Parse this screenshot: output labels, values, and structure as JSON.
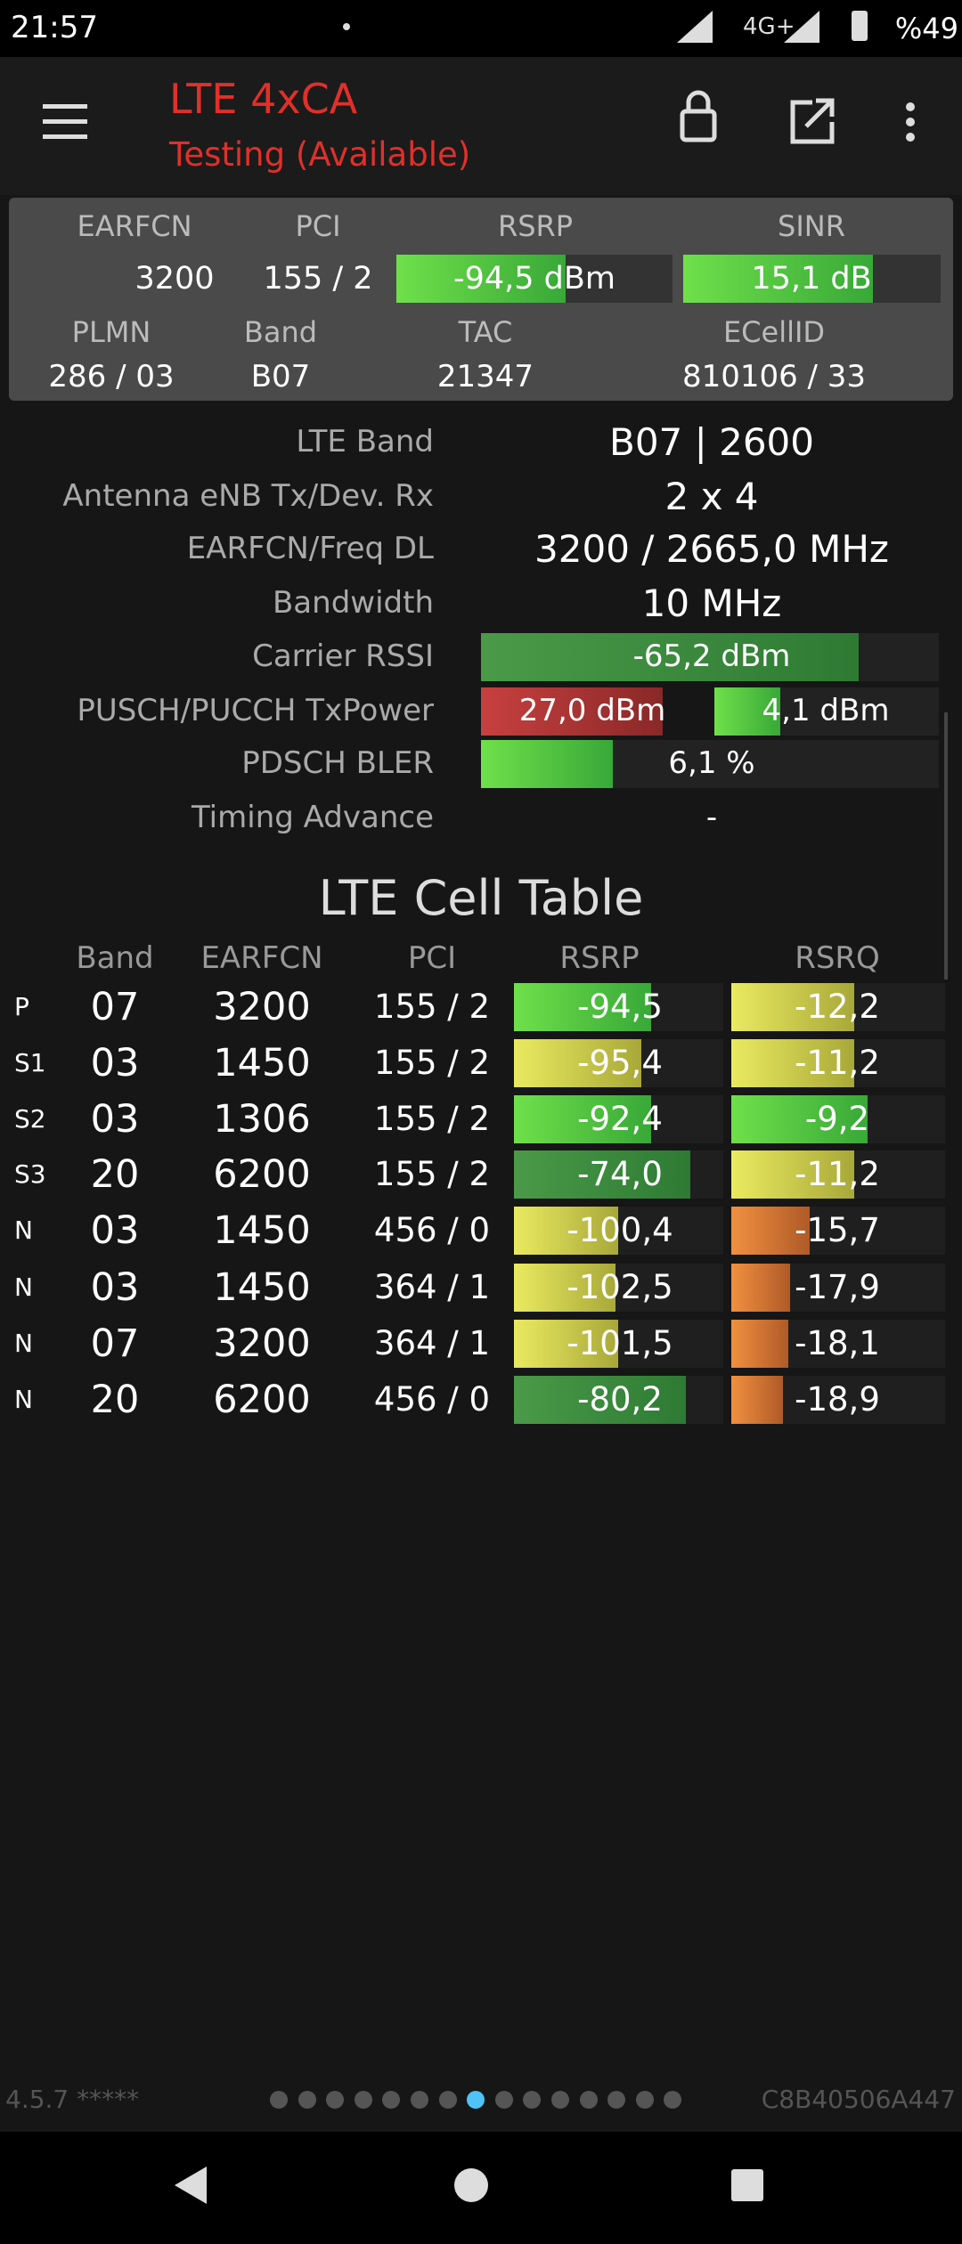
{
  "status_bar": {
    "time": "21:57",
    "network": "4G+",
    "battery": "%49"
  },
  "header": {
    "title": "LTE 4xCA",
    "subtitle": "Testing (Available)"
  },
  "summary": {
    "labels": [
      "EARFCN",
      "PCI",
      "RSRP",
      "SINR"
    ],
    "values": [
      "3200",
      "155 / 2",
      "-94,5 dBm",
      "15,1 dB"
    ],
    "labels2": [
      "PLMN",
      "Band",
      "TAC",
      "ECellID"
    ],
    "values2": [
      "286 / 03",
      "B07",
      "21347",
      "810106 / 33"
    ]
  },
  "details": {
    "rows": [
      {
        "label": "LTE Band",
        "value": "B07 | 2600"
      },
      {
        "label": "Antenna eNB Tx/Dev. Rx",
        "value": "2 x 4"
      },
      {
        "label": "EARFCN/Freq DL",
        "value": "3200 / 2665,0 MHz"
      },
      {
        "label": "Bandwidth",
        "value": "10 MHz"
      },
      {
        "label": "Carrier RSSI",
        "value": "-65,2 dBm"
      },
      {
        "label": "PUSCH/PUCCH TxPower",
        "values": [
          "27,0 dBm",
          "4,1 dBm"
        ]
      },
      {
        "label": "PDSCH BLER",
        "value": "6,1 %"
      },
      {
        "label": "Timing Advance",
        "value": "-"
      }
    ]
  },
  "cell_table": {
    "title": "LTE Cell Table",
    "columns": [
      "Band",
      "EARFCN",
      "PCI",
      "RSRP",
      "RSRQ"
    ],
    "rows": [
      [
        "P",
        "07",
        "3200",
        "155 / 2",
        "-94,5",
        "-12,2"
      ],
      [
        "S1",
        "03",
        "1450",
        "155 / 2",
        "-95,4",
        "-11,2"
      ],
      [
        "S2",
        "03",
        "1306",
        "155 / 2",
        "-92,4",
        "-9,2"
      ],
      [
        "S3",
        "20",
        "6200",
        "155 / 2",
        "-74,0",
        "-11,2"
      ],
      [
        "N",
        "03",
        "1450",
        "456 / 0",
        "-100,4",
        "-15,7"
      ],
      [
        "N",
        "03",
        "1450",
        "364 / 1",
        "-102,5",
        "-17,9"
      ],
      [
        "N",
        "07",
        "3200",
        "364 / 1",
        "-101,5",
        "-18,1"
      ],
      [
        "N",
        "20",
        "6200",
        "456 / 0",
        "-80,2",
        "-18,9"
      ]
    ]
  },
  "footer": {
    "version": "4.5.7 *****",
    "device_id": "C8B40506A447"
  }
}
